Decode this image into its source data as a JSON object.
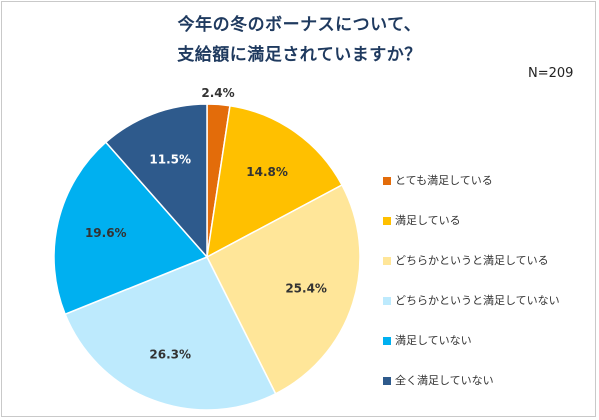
{
  "note": "N=209",
  "chart_data": {
    "type": "pie",
    "title_lines": [
      "今年の冬のボーナスについて、",
      "支給額に満足されていますか？"
    ],
    "categories": [
      "とても満足している",
      "満足している",
      "どちらかというと満足している",
      "どちらかというと満足していない",
      "満足していない",
      "全く満足していない"
    ],
    "values": [
      2.4,
      14.8,
      25.4,
      26.3,
      19.6,
      11.5
    ],
    "data_labels": [
      "2.4%",
      "14.8%",
      "25.4%",
      "26.3%",
      "19.6%",
      "11.5%"
    ],
    "colors": [
      "#e36c0a",
      "#ffc000",
      "#ffe699",
      "#bdeafd",
      "#00b0f0",
      "#2e5a8c"
    ],
    "label_colors": [
      "#333333",
      "#333333",
      "#333333",
      "#333333",
      "#333333",
      "#ffffff"
    ],
    "legend_position": "right"
  }
}
